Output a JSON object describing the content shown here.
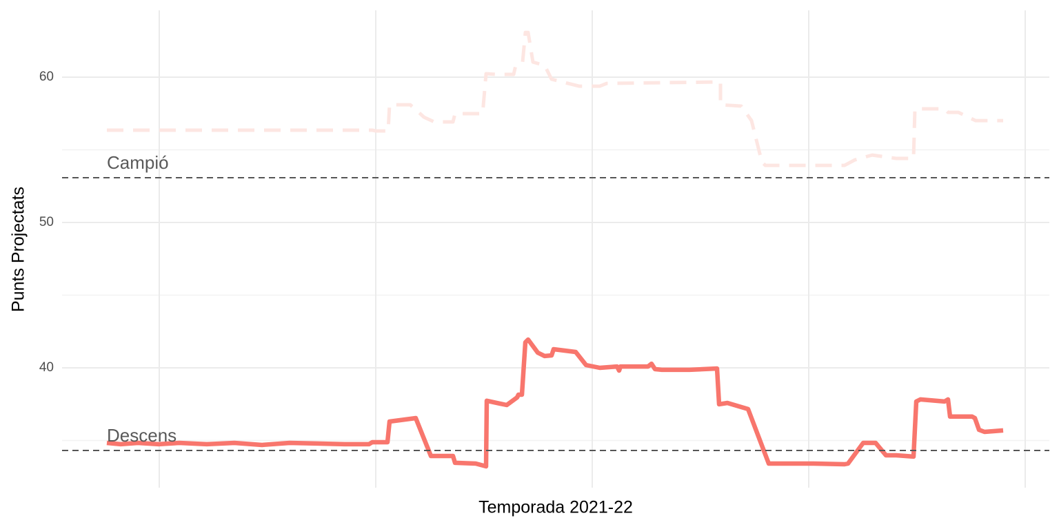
{
  "chart_data": {
    "type": "line",
    "x_label": "Temporada 2021-22",
    "y_label": "Punts Projectats",
    "xlim": [
      -65,
      1367
    ],
    "ylim": [
      31.75,
      64.6
    ],
    "yticks": [
      40,
      50,
      60
    ],
    "yminor": [
      35,
      45,
      55
    ],
    "xgrid": [
      76,
      390,
      704,
      1018,
      1332
    ],
    "grid": true,
    "hlines": [
      {
        "label": "Campió",
        "value": 53.08
      },
      {
        "label": "Descens",
        "value": 34.31
      }
    ],
    "series": [
      {
        "color": "#fde6e2",
        "dash": true,
        "x": [
          0,
          385,
          390,
          408,
          410,
          440,
          460,
          475,
          502,
          505,
          545,
          550,
          565,
          590,
          593,
          603,
          607,
          611,
          618,
          635,
          645,
          685,
          715,
          725,
          890,
          890,
          920,
          935,
          950,
          955,
          1035,
          1070,
          1085,
          1110,
          1145,
          1170,
          1172,
          1215,
          1220,
          1235,
          1260,
          1270,
          1300
        ],
        "values": [
          56.35,
          56.35,
          56.3,
          56.3,
          58.1,
          58.1,
          57.25,
          56.92,
          56.92,
          57.49,
          57.49,
          60.24,
          60.19,
          60.19,
          60.81,
          61.04,
          63.08,
          63.08,
          61.04,
          60.81,
          59.86,
          59.38,
          59.38,
          59.57,
          59.67,
          58.1,
          58.01,
          57.01,
          54.17,
          53.93,
          53.93,
          53.93,
          54.31,
          54.64,
          54.41,
          54.41,
          57.82,
          57.82,
          57.58,
          57.58,
          57.01,
          57.01,
          57.01
        ]
      },
      {
        "color": "#f8766d",
        "dash": false,
        "x": [
          0,
          20,
          45,
          75,
          105,
          145,
          185,
          225,
          265,
          305,
          345,
          380,
          385,
          407,
          410,
          448,
          470,
          502,
          505,
          535,
          550,
          551,
          570,
          580,
          595,
          597,
          602,
          607,
          611,
          625,
          635,
          645,
          648,
          680,
          695,
          715,
          740,
          743,
          745,
          785,
          790,
          795,
          805,
          845,
          885,
          888,
          900,
          930,
          960,
          1025,
          1070,
          1075,
          1097,
          1115,
          1130,
          1145,
          1170,
          1174,
          1180,
          1215,
          1220,
          1223,
          1255,
          1259,
          1265,
          1273,
          1300
        ],
        "values": [
          34.83,
          34.74,
          34.83,
          34.74,
          34.83,
          34.74,
          34.83,
          34.69,
          34.83,
          34.79,
          34.74,
          34.74,
          34.88,
          34.88,
          36.3,
          36.54,
          33.93,
          33.93,
          33.46,
          33.41,
          33.22,
          37.73,
          37.54,
          37.44,
          37.96,
          38.15,
          38.15,
          41.75,
          41.94,
          41.04,
          40.81,
          40.85,
          41.28,
          41.09,
          40.19,
          40.0,
          40.09,
          39.81,
          40.09,
          40.09,
          40.28,
          39.91,
          39.86,
          39.86,
          39.95,
          37.49,
          37.58,
          37.16,
          33.41,
          33.41,
          33.36,
          33.41,
          34.83,
          34.83,
          33.98,
          33.98,
          33.89,
          37.68,
          37.82,
          37.68,
          37.82,
          36.64,
          36.64,
          36.54,
          35.73,
          35.59,
          35.69
        ]
      }
    ]
  }
}
